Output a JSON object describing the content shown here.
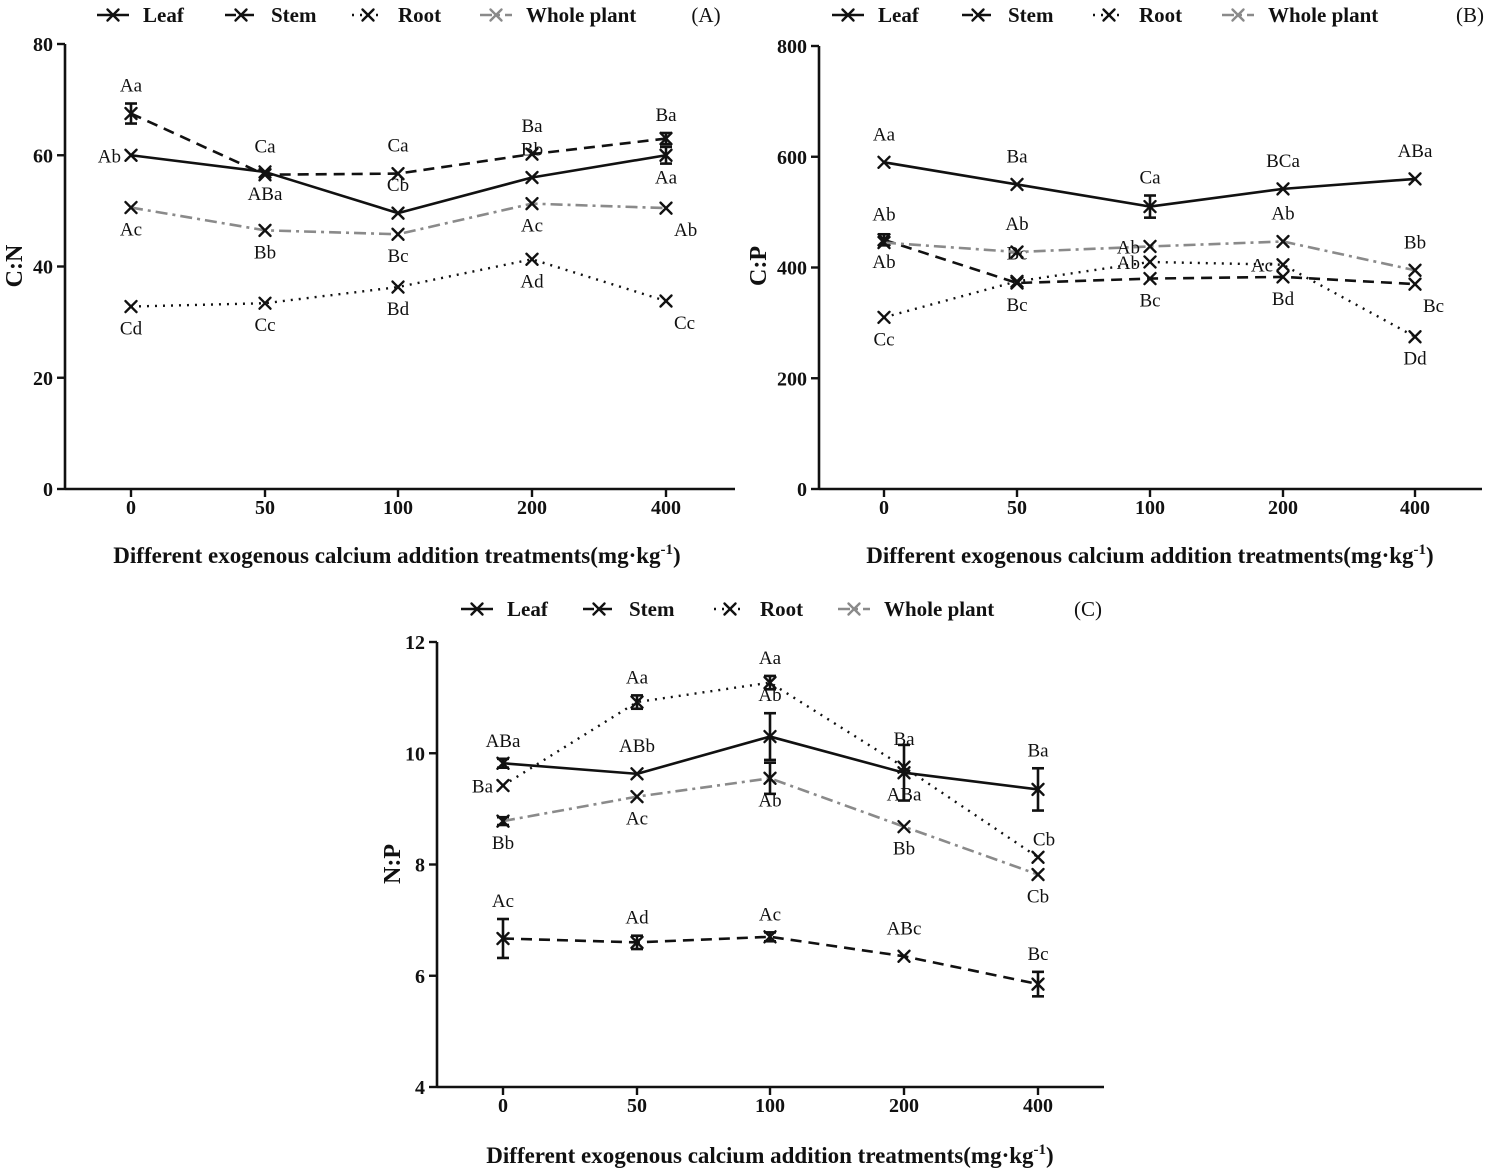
{
  "colors": {
    "black": "#111111",
    "gray": "#8a8a8a"
  },
  "chart_data": [
    {
      "type": "line",
      "panel": "(A)",
      "ylabel": "C:N",
      "xlabel_main": "Different exogenous calcium addition treatments(mg·kg",
      "xlabel_sup": "-1",
      "xlabel_tail": ")",
      "categories": [
        "0",
        "50",
        "100",
        "200",
        "400"
      ],
      "ylim": [
        0,
        80
      ],
      "yticks": [
        0,
        20,
        40,
        60,
        80
      ],
      "legend": [
        "Leaf",
        "Stem",
        "Root",
        "Whole plant"
      ],
      "series": [
        {
          "name": "Leaf",
          "style": "solid",
          "values": [
            60,
            57,
            49.6,
            56,
            60
          ],
          "errors": [
            0,
            0,
            0,
            0,
            1.5
          ],
          "letters": [
            "Ab",
            "ABa",
            "Cb",
            "Bb",
            "Aa"
          ],
          "letter_pos": [
            "left",
            "below",
            "above",
            "above",
            "below"
          ]
        },
        {
          "name": "Stem",
          "style": "dash",
          "values": [
            67.5,
            56.5,
            56.7,
            60.2,
            63
          ],
          "errors": [
            1.8,
            0,
            0,
            0,
            1.0
          ],
          "letters": [
            "Aa",
            "Ca",
            "Ca",
            "Ba",
            "Ba"
          ],
          "letter_pos": [
            "above",
            "above",
            "above",
            "above",
            "above"
          ]
        },
        {
          "name": "Root",
          "style": "dot",
          "values": [
            32.8,
            33.4,
            36.3,
            41.3,
            33.8
          ],
          "errors": [
            0,
            0,
            0,
            0,
            0
          ],
          "letters": [
            "Cd",
            "Cc",
            "Bd",
            "Ad",
            "Cc"
          ],
          "letter_pos": [
            "below",
            "below",
            "below",
            "below",
            "below-right"
          ]
        },
        {
          "name": "Whole plant",
          "style": "dashdot",
          "values": [
            50.6,
            46.5,
            45.8,
            51.3,
            50.5
          ],
          "errors": [
            0,
            0,
            0,
            0,
            0
          ],
          "letters": [
            "Ac",
            "Bb",
            "Bc",
            "Ac",
            "Ab"
          ],
          "letter_pos": [
            "below",
            "below",
            "below",
            "below",
            "below-right"
          ]
        }
      ]
    },
    {
      "type": "line",
      "panel": "(B)",
      "ylabel": "C:P",
      "xlabel_main": "Different exogenous calcium addition treatments(mg·kg",
      "xlabel_sup": "-1",
      "xlabel_tail": ")",
      "categories": [
        "0",
        "50",
        "100",
        "200",
        "400"
      ],
      "ylim": [
        0,
        800
      ],
      "yticks": [
        0,
        200,
        400,
        600,
        800
      ],
      "legend": [
        "Leaf",
        "Stem",
        "Root",
        "Whole plant"
      ],
      "series": [
        {
          "name": "Leaf",
          "style": "solid",
          "values": [
            590,
            550,
            510,
            542,
            560
          ],
          "errors": [
            0,
            0,
            20,
            0,
            0
          ],
          "letters": [
            "Aa",
            "Ba",
            "Ca",
            "BCa",
            "ABa"
          ],
          "letter_pos": [
            "above",
            "above",
            "above",
            "above",
            "above"
          ]
        },
        {
          "name": "Stem",
          "style": "dash",
          "values": [
            450,
            372,
            380,
            383,
            370
          ],
          "errors": [
            10,
            0,
            0,
            0,
            0
          ],
          "letters": [
            "Ab",
            "Bc",
            "Bc",
            "Bd",
            "Bc"
          ],
          "letter_pos": [
            "below",
            "below",
            "below",
            "below",
            "below-right"
          ]
        },
        {
          "name": "Root",
          "style": "dot",
          "values": [
            310,
            375,
            410,
            405,
            275
          ],
          "errors": [
            0,
            0,
            0,
            0,
            0
          ],
          "letters": [
            "Cc",
            "Bc",
            "Ab",
            "Ac",
            "Dd"
          ],
          "letter_pos": [
            "below",
            "above",
            "left",
            "left",
            "below"
          ]
        },
        {
          "name": "Whole plant",
          "style": "dashdot",
          "values": [
            445,
            428,
            438,
            447,
            395
          ],
          "errors": [
            0,
            0,
            0,
            0,
            0
          ],
          "letters": [
            "Ab",
            "Ab",
            "Ab",
            "Ab",
            "Bb"
          ],
          "letter_pos": [
            "above",
            "above",
            "left",
            "above",
            "above"
          ]
        }
      ]
    },
    {
      "type": "line",
      "panel": "(C)",
      "ylabel": "N:P",
      "xlabel_main": "Different exogenous calcium addition treatments(mg·kg",
      "xlabel_sup": "-1",
      "xlabel_tail": ")",
      "categories": [
        "0",
        "50",
        "100",
        "200",
        "400"
      ],
      "ylim": [
        4,
        12
      ],
      "yticks": [
        4,
        6,
        8,
        10,
        12
      ],
      "legend": [
        "Leaf",
        "Stem",
        "Root",
        "Whole plant"
      ],
      "series": [
        {
          "name": "Leaf",
          "style": "solid",
          "values": [
            9.82,
            9.63,
            10.3,
            9.65,
            9.35
          ],
          "errors": [
            0.08,
            0,
            0.42,
            0.5,
            0.38
          ],
          "letters": [
            "ABa",
            "ABb",
            "Ab",
            "ABa",
            "Ba"
          ],
          "letter_pos": [
            "above",
            "above",
            "above",
            "below",
            "above"
          ]
        },
        {
          "name": "Stem",
          "style": "dash",
          "values": [
            6.67,
            6.6,
            6.7,
            6.35,
            5.85
          ],
          "errors": [
            0.35,
            0.12,
            0.08,
            0,
            0.22
          ],
          "letters": [
            "Ac",
            "Ad",
            "Ac",
            "ABc",
            "Bc"
          ],
          "letter_pos": [
            "above",
            "above",
            "above",
            "above",
            "above"
          ]
        },
        {
          "name": "Root",
          "style": "dot",
          "values": [
            9.42,
            10.92,
            11.27,
            9.75,
            8.13
          ],
          "errors": [
            0,
            0.12,
            0.12,
            0,
            0
          ],
          "letters": [
            "Ba",
            "Aa",
            "Aa",
            "Ba",
            "Cb"
          ],
          "letter_pos": [
            "left",
            "above",
            "above",
            "above",
            "above-right"
          ]
        },
        {
          "name": "Whole plant",
          "style": "dashdot",
          "values": [
            8.78,
            9.22,
            9.55,
            8.68,
            7.82
          ],
          "errors": [
            0.07,
            0,
            0.28,
            0,
            0
          ],
          "letters": [
            "Bb",
            "Ac",
            "Ab",
            "Bb",
            "Cb"
          ],
          "letter_pos": [
            "below",
            "below",
            "below",
            "below",
            "below"
          ]
        }
      ]
    }
  ]
}
